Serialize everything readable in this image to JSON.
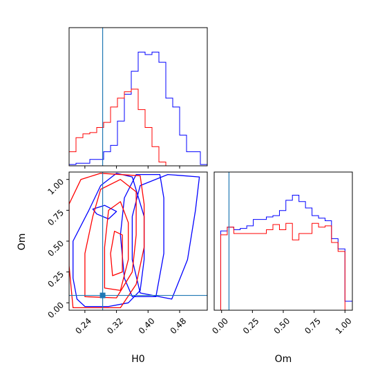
{
  "chart_data": {
    "type": "corner",
    "parameters": [
      "H0",
      "Om"
    ],
    "truths": {
      "H0": 0.285,
      "Om": 0.06
    },
    "colors": {
      "series_a": "#0000ff",
      "series_b": "#ff0000",
      "truth": "#1f77b4"
    },
    "axes": {
      "H0": {
        "lim": [
          0.2,
          0.55
        ],
        "ticks": [
          0.24,
          0.32,
          0.4,
          0.48
        ],
        "tick_labels": [
          "0.24",
          "0.32",
          "0.40",
          "0.48"
        ],
        "label": "H0"
      },
      "Om": {
        "lim": [
          -0.06,
          1.06
        ],
        "ticks": [
          0.0,
          0.25,
          0.5,
          0.75,
          1.0
        ],
        "tick_labels": [
          "0.00",
          "0.25",
          "0.50",
          "0.75",
          "1.00"
        ],
        "label": "Om"
      }
    },
    "hist_H0": {
      "bin_edges": [
        0.2,
        0.2175,
        0.235,
        0.2525,
        0.27,
        0.2875,
        0.305,
        0.3225,
        0.34,
        0.3575,
        0.375,
        0.3925,
        0.41,
        0.4275,
        0.445,
        0.4625,
        0.48,
        0.4975,
        0.515,
        0.5325,
        0.55
      ],
      "series": [
        {
          "color": "#0000ff",
          "counts": [
            0.01,
            0.02,
            0.02,
            0.05,
            0.05,
            0.11,
            0.16,
            0.35,
            0.56,
            0.74,
            0.89,
            0.87,
            0.89,
            0.81,
            0.53,
            0.46,
            0.24,
            0.11,
            0.11,
            0.01
          ]
        },
        {
          "color": "#ff0000",
          "counts": [
            0.11,
            0.22,
            0.25,
            0.26,
            0.3,
            0.34,
            0.46,
            0.53,
            0.58,
            0.6,
            0.44,
            0.3,
            0.15,
            0.03,
            0.0,
            0.0,
            0.0,
            0.0,
            0.0,
            0.0
          ]
        }
      ]
    },
    "hist_Om": {
      "bin_edges": [
        -0.06,
        -0.007,
        0.046,
        0.099,
        0.151,
        0.204,
        0.257,
        0.31,
        0.363,
        0.416,
        0.469,
        0.521,
        0.574,
        0.627,
        0.68,
        0.733,
        0.786,
        0.839,
        0.891,
        0.944,
        1.0,
        1.06
      ],
      "series": [
        {
          "color": "#0000ff",
          "counts": [
            0.0,
            0.62,
            0.65,
            0.63,
            0.64,
            0.66,
            0.71,
            0.71,
            0.73,
            0.74,
            0.78,
            0.86,
            0.9,
            0.85,
            0.8,
            0.74,
            0.72,
            0.7,
            0.56,
            0.48,
            0.07
          ]
        },
        {
          "color": "#ff0000",
          "counts": [
            0.0,
            0.59,
            0.65,
            0.6,
            0.6,
            0.6,
            0.6,
            0.6,
            0.63,
            0.67,
            0.63,
            0.68,
            0.55,
            0.6,
            0.6,
            0.68,
            0.65,
            0.66,
            0.53,
            0.46,
            0.0
          ]
        }
      ]
    },
    "contours": {
      "series": [
        {
          "color": "#0000ff",
          "levels": [
            [
              [
                0.24,
                -0.03
              ],
              [
                0.3,
                -0.03
              ],
              [
                0.35,
                0.0
              ],
              [
                0.38,
                0.1
              ],
              [
                0.39,
                0.35
              ],
              [
                0.39,
                0.7
              ],
              [
                0.36,
                1.02
              ],
              [
                0.32,
                1.05
              ],
              [
                0.28,
                0.95
              ],
              [
                0.25,
                0.75
              ],
              [
                0.21,
                0.5
              ],
              [
                0.21,
                0.2
              ],
              [
                0.22,
                0.03
              ]
            ],
            [
              [
                0.36,
                0.05
              ],
              [
                0.42,
                0.05
              ],
              [
                0.44,
                0.4
              ],
              [
                0.44,
                0.85
              ],
              [
                0.43,
                1.04
              ],
              [
                0.37,
                1.04
              ],
              [
                0.34,
                0.85
              ],
              [
                0.33,
                0.55
              ],
              [
                0.34,
                0.2
              ]
            ],
            [
              [
                0.38,
                0.08
              ],
              [
                0.46,
                0.03
              ],
              [
                0.5,
                0.35
              ],
              [
                0.52,
                0.75
              ],
              [
                0.53,
                1.02
              ],
              [
                0.45,
                1.04
              ],
              [
                0.38,
                0.95
              ],
              [
                0.36,
                0.7
              ],
              [
                0.36,
                0.35
              ]
            ],
            [
              [
                0.27,
                0.72
              ],
              [
                0.3,
                0.68
              ],
              [
                0.32,
                0.74
              ],
              [
                0.29,
                0.79
              ],
              [
                0.26,
                0.76
              ]
            ]
          ]
        },
        {
          "color": "#ff0000",
          "levels": [
            [
              [
                0.21,
                -0.04
              ],
              [
                0.33,
                -0.04
              ],
              [
                0.37,
                0.15
              ],
              [
                0.39,
                0.45
              ],
              [
                0.39,
                0.8
              ],
              [
                0.38,
                1.03
              ],
              [
                0.28,
                1.05
              ],
              [
                0.23,
                1.0
              ],
              [
                0.2,
                0.8
              ],
              [
                0.2,
                0.3
              ]
            ],
            [
              [
                0.24,
                0.05
              ],
              [
                0.32,
                0.04
              ],
              [
                0.36,
                0.25
              ],
              [
                0.37,
                0.55
              ],
              [
                0.37,
                0.9
              ],
              [
                0.33,
                1.0
              ],
              [
                0.28,
                0.92
              ],
              [
                0.26,
                0.7
              ],
              [
                0.24,
                0.4
              ]
            ],
            [
              [
                0.29,
                0.12
              ],
              [
                0.33,
                0.1
              ],
              [
                0.35,
                0.35
              ],
              [
                0.35,
                0.65
              ],
              [
                0.33,
                0.82
              ],
              [
                0.3,
                0.75
              ],
              [
                0.29,
                0.45
              ]
            ],
            [
              [
                0.31,
                0.22
              ],
              [
                0.335,
                0.25
              ],
              [
                0.335,
                0.55
              ],
              [
                0.315,
                0.58
              ],
              [
                0.305,
                0.4
              ]
            ]
          ]
        }
      ]
    }
  }
}
